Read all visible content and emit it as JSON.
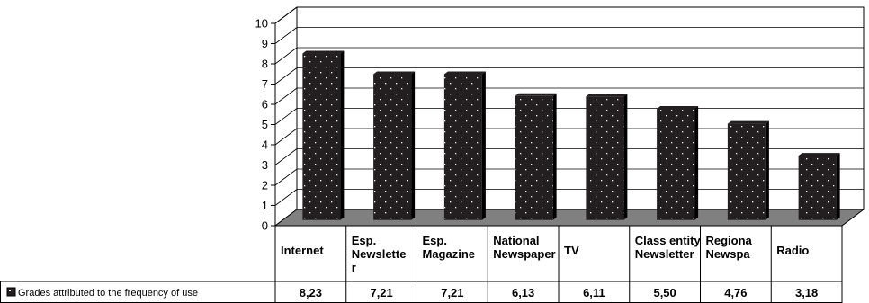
{
  "chart_data": {
    "type": "bar",
    "title": "",
    "xlabel": "",
    "ylabel": "",
    "ylim": [
      0,
      10
    ],
    "yticks": [
      "0",
      "1",
      "2",
      "3",
      "4",
      "5",
      "6",
      "7",
      "8",
      "9",
      "10"
    ],
    "grid": true,
    "legend": "data-table-left",
    "categories": [
      [
        "Internet"
      ],
      [
        "Esp.",
        "Newslette",
        "r"
      ],
      [
        "Esp.",
        "Magazine"
      ],
      [
        "National",
        "Newspaper"
      ],
      [
        "TV"
      ],
      [
        "Class entity",
        "Newsletter"
      ],
      [
        "Regiona",
        "Newspa"
      ],
      [
        "Radio"
      ]
    ],
    "series": [
      {
        "name": "Grades attributed to the frequency of use",
        "values": [
          8.23,
          7.21,
          7.21,
          6.13,
          6.11,
          5.5,
          4.76,
          3.18
        ],
        "value_labels": [
          "8,23",
          "7,21",
          "7,21",
          "6,13",
          "6,11",
          "5,50",
          "4,76",
          "3,18"
        ],
        "color": "#231f20"
      }
    ],
    "floor_color": "#808080",
    "dot_color": "#ffffff"
  }
}
